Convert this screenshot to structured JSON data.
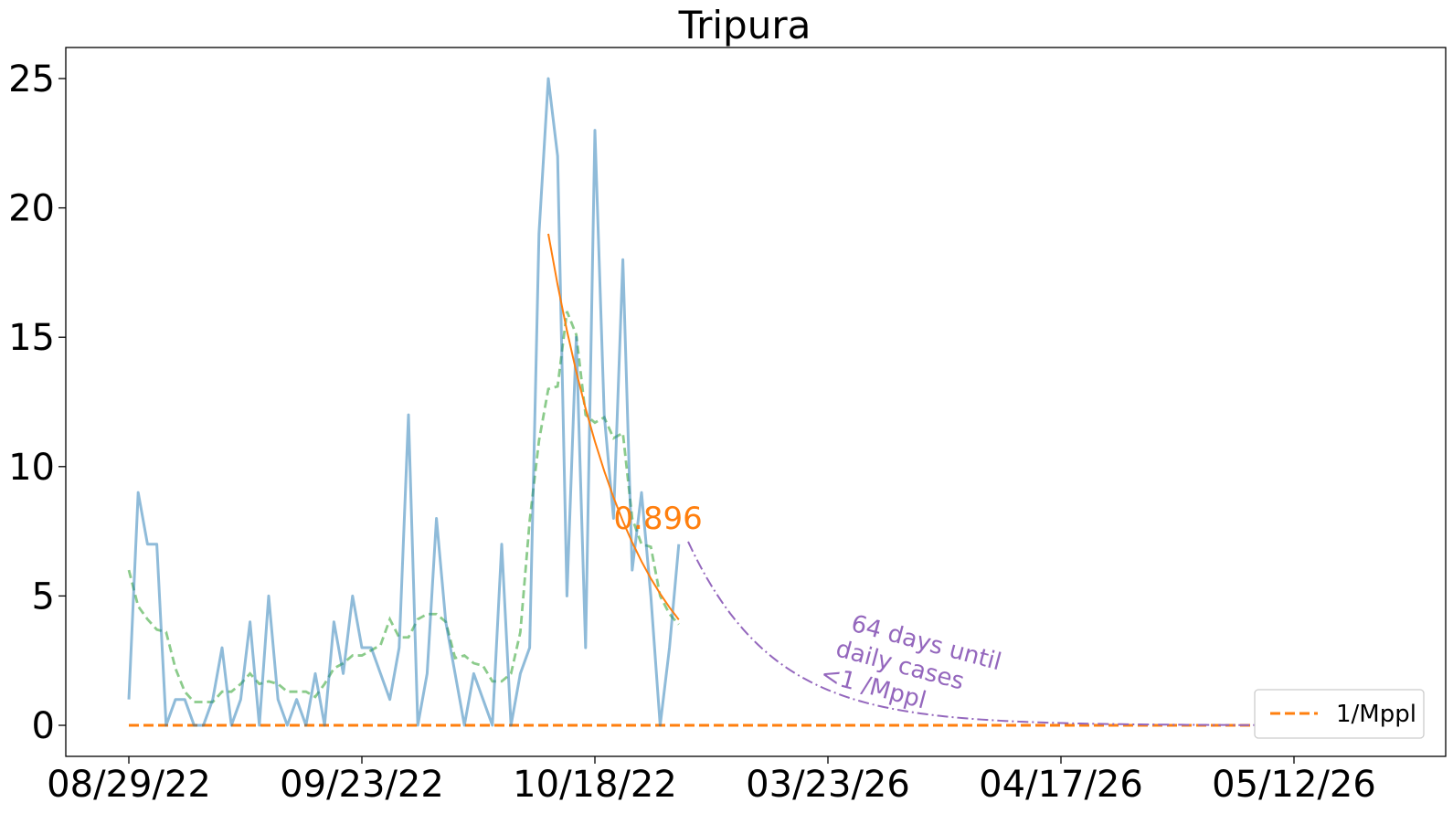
{
  "chart_data": {
    "type": "line",
    "title": "Tripura",
    "xlabel": "",
    "ylabel": "",
    "ylim": [
      -1.2,
      26.2
    ],
    "yticks": [
      0,
      5,
      10,
      15,
      20,
      25
    ],
    "x_tick_labels": [
      "08/29/22",
      "09/23/22",
      "10/18/22",
      "03/23/26",
      "04/17/26",
      "05/12/26"
    ],
    "grid": false,
    "legend": {
      "position": "bottom-right",
      "entries": [
        "1/Mppl"
      ]
    },
    "colors": {
      "daily": "#1f77b4",
      "average": "#2ca02c",
      "fit": "#ff7f0e",
      "projection": "#9467bd",
      "threshold": "#ff7f0e"
    },
    "series": [
      {
        "role": "daily",
        "values": [
          1,
          9,
          7,
          7,
          0,
          1,
          1,
          0,
          0,
          1,
          3,
          0,
          1,
          4,
          0,
          5,
          1,
          0,
          1,
          0,
          2,
          0,
          4,
          2,
          5,
          3,
          3,
          2,
          1,
          3,
          12,
          0,
          2,
          8,
          4,
          2,
          0,
          2,
          1,
          0,
          7,
          0,
          2,
          3,
          19,
          25,
          22,
          5,
          15,
          3,
          23,
          12,
          8,
          18,
          6,
          9,
          5,
          0,
          3,
          7
        ]
      },
      {
        "role": "average",
        "values": [
          6,
          4.6,
          4.1,
          3.7,
          3.6,
          2.2,
          1.3,
          0.9,
          0.9,
          0.9,
          1.3,
          1.3,
          1.6,
          2.0,
          1.6,
          1.7,
          1.6,
          1.3,
          1.3,
          1.3,
          1.1,
          1.6,
          2.2,
          2.4,
          2.7,
          2.7,
          2.9,
          3.1,
          4.1,
          3.4,
          3.4,
          4.1,
          4.3,
          4.3,
          4.0,
          2.6,
          2.7,
          2.4,
          2.3,
          1.7,
          1.7,
          2.0,
          3.6,
          7.9,
          11.0,
          13.0,
          13.1,
          16.0,
          15.1,
          12.0,
          11.7,
          11.9,
          11.1,
          11.3,
          8.0,
          7.0,
          6.9,
          5.0,
          4.3,
          3.9
        ]
      },
      {
        "role": "fit",
        "x_start": 45,
        "x_end": 59,
        "y_start": 19,
        "decay": 0.896,
        "label": "0.896"
      },
      {
        "role": "projection",
        "x_start": 60,
        "x_end": 130,
        "y_start": 7.1,
        "decay": 0.896
      },
      {
        "role": "threshold",
        "name": "1/Mppl",
        "value": 0
      }
    ],
    "annotations": [
      {
        "text_lines": [
          "64 days until",
          "daily cases",
          "<1 /Mppl"
        ]
      }
    ]
  }
}
